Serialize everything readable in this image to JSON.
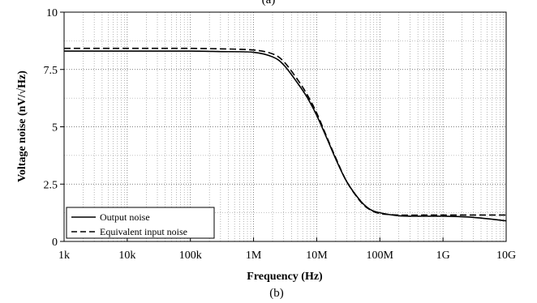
{
  "chart_data": {
    "type": "line",
    "title": "",
    "caption_top": "(a)",
    "caption_bottom": "(b)",
    "xlabel": "Frequency (Hz)",
    "ylabel": "Voltage noise (nV/√Hz)",
    "x_scale": "log",
    "xlim": [
      1000,
      10000000000
    ],
    "ylim": [
      0,
      10
    ],
    "x_ticks": [
      {
        "value": 1000,
        "label": "1k"
      },
      {
        "value": 10000,
        "label": "10k"
      },
      {
        "value": 100000,
        "label": "100k"
      },
      {
        "value": 1000000,
        "label": "1M"
      },
      {
        "value": 10000000,
        "label": "10M"
      },
      {
        "value": 100000000,
        "label": "100M"
      },
      {
        "value": 1000000000,
        "label": "1G"
      },
      {
        "value": 10000000000,
        "label": "10G"
      }
    ],
    "y_ticks": [
      {
        "value": 0,
        "label": "0"
      },
      {
        "value": 2.5,
        "label": "2.5"
      },
      {
        "value": 5,
        "label": "5"
      },
      {
        "value": 7.5,
        "label": "7.5"
      },
      {
        "value": 10,
        "label": "10"
      }
    ],
    "grid": true,
    "grid_style": "dotted",
    "legend_position": "bottom-left",
    "series": [
      {
        "name": "Output noise",
        "line_style": "solid",
        "color": "#000000",
        "x": [
          1000,
          10000,
          100000,
          300000,
          1000000,
          2000000,
          3000000,
          5000000,
          7000000,
          10000000,
          15000000,
          20000000,
          30000000,
          50000000,
          70000000,
          100000000,
          200000000,
          500000000,
          1000000000,
          3000000000,
          10000000000
        ],
        "y": [
          8.3,
          8.3,
          8.3,
          8.28,
          8.25,
          8.05,
          7.7,
          6.9,
          6.3,
          5.5,
          4.4,
          3.6,
          2.6,
          1.75,
          1.4,
          1.25,
          1.12,
          1.1,
          1.1,
          1.05,
          0.9
        ]
      },
      {
        "name": "Equivalent input noise",
        "line_style": "dashed",
        "color": "#000000",
        "x": [
          1000,
          10000,
          100000,
          300000,
          1000000,
          2000000,
          3000000,
          5000000,
          7000000,
          10000000,
          15000000,
          20000000,
          30000000,
          50000000,
          70000000,
          100000000,
          200000000,
          500000000,
          1000000000,
          3000000000,
          10000000000
        ],
        "y": [
          8.42,
          8.42,
          8.42,
          8.4,
          8.35,
          8.18,
          7.85,
          7.05,
          6.42,
          5.6,
          4.45,
          3.65,
          2.6,
          1.72,
          1.38,
          1.22,
          1.15,
          1.15,
          1.15,
          1.15,
          1.15
        ]
      }
    ]
  }
}
